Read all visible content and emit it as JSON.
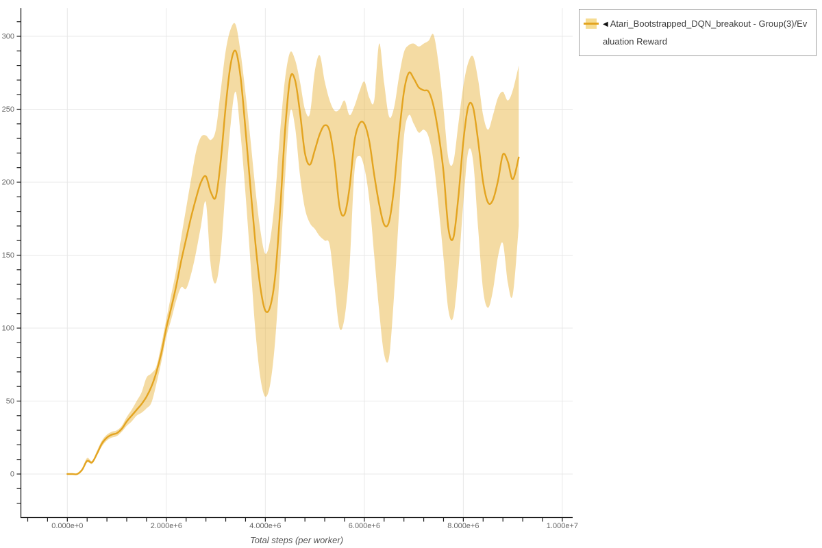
{
  "legend": {
    "collapse_icon": "◀",
    "label": "Atari_Bootstrapped_DQN_breakout - Group(3)/Evaluation Reward"
  },
  "chart_data": {
    "type": "line",
    "title": "",
    "xlabel": "Total steps (per worker)",
    "ylabel": "",
    "grid": true,
    "legend_position": "top-right-outside",
    "xlim": [
      -945000,
      10200000
    ],
    "ylim": [
      -30,
      320
    ],
    "x_ticks": [
      {
        "value": 0,
        "label": "0.000e+0"
      },
      {
        "value": 2000000,
        "label": "2.000e+6"
      },
      {
        "value": 4000000,
        "label": "4.000e+6"
      },
      {
        "value": 6000000,
        "label": "6.000e+6"
      },
      {
        "value": 8000000,
        "label": "8.000e+6"
      },
      {
        "value": 10000000,
        "label": "1.000e+7"
      }
    ],
    "x_minor_tick_step": 400000,
    "y_ticks": [
      {
        "value": 0,
        "label": "0"
      },
      {
        "value": 50,
        "label": "50"
      },
      {
        "value": 100,
        "label": "100"
      },
      {
        "value": 150,
        "label": "150"
      },
      {
        "value": 200,
        "label": "200"
      },
      {
        "value": 250,
        "label": "250"
      },
      {
        "value": 300,
        "label": "300"
      }
    ],
    "y_minor_tick_step": 10,
    "colors": {
      "line": "#e3a420",
      "band": "rgba(232,180,62,0.48)",
      "grid": "#e8e8e8",
      "spine": "#1a1a1a",
      "tick_label": "#666666"
    },
    "series": [
      {
        "name": "Atari_Bootstrapped_DQN_breakout - Group(3)/Evaluation Reward",
        "x": [
          0,
          100000,
          200000,
          300000,
          400000,
          500000,
          600000,
          700000,
          800000,
          900000,
          1000000,
          1100000,
          1200000,
          1300000,
          1400000,
          1500000,
          1600000,
          1700000,
          1800000,
          1900000,
          2000000,
          2100000,
          2200000,
          2300000,
          2400000,
          2500000,
          2600000,
          2700000,
          2800000,
          2900000,
          3000000,
          3100000,
          3200000,
          3300000,
          3400000,
          3500000,
          3600000,
          3700000,
          3800000,
          3900000,
          4000000,
          4100000,
          4200000,
          4300000,
          4400000,
          4500000,
          4600000,
          4700000,
          4800000,
          4900000,
          5000000,
          5100000,
          5200000,
          5300000,
          5400000,
          5500000,
          5600000,
          5700000,
          5800000,
          5900000,
          6000000,
          6100000,
          6200000,
          6300000,
          6400000,
          6500000,
          6600000,
          6700000,
          6800000,
          6900000,
          7000000,
          7100000,
          7200000,
          7300000,
          7400000,
          7500000,
          7600000,
          7700000,
          7800000,
          7900000,
          8000000,
          8100000,
          8200000,
          8300000,
          8400000,
          8500000,
          8600000,
          8700000,
          8800000,
          8900000,
          9000000,
          9120000
        ],
        "mean": [
          0,
          0,
          0,
          3,
          9,
          8,
          14,
          21,
          25,
          27,
          28,
          31,
          36,
          40,
          44,
          48,
          53,
          60,
          70,
          83,
          100,
          114,
          129,
          146,
          161,
          176,
          189,
          200,
          204,
          193,
          190,
          215,
          252,
          281,
          290,
          272,
          236,
          196,
          158,
          128,
          112,
          115,
          136,
          181,
          236,
          271,
          270,
          248,
          220,
          212,
          222,
          233,
          239,
          235,
          214,
          183,
          178,
          196,
          228,
          240,
          240,
          228,
          205,
          185,
          171,
          173,
          196,
          232,
          262,
          275,
          271,
          265,
          263,
          262,
          252,
          233,
          207,
          168,
          162,
          190,
          228,
          252,
          251,
          228,
          200,
          186,
          188,
          201,
          219,
          214,
          202,
          217
        ],
        "band_lower": [
          0,
          0,
          0,
          2,
          8,
          7,
          13,
          19,
          23,
          25,
          26,
          29,
          33,
          36,
          40,
          42,
          45,
          49,
          62,
          77,
          94,
          106,
          119,
          128,
          127,
          137,
          152,
          170,
          186,
          142,
          131,
          152,
          198,
          240,
          262,
          233,
          192,
          145,
          98,
          66,
          53,
          62,
          92,
          143,
          203,
          248,
          238,
          205,
          182,
          172,
          168,
          163,
          160,
          157,
          128,
          100,
          107,
          142,
          207,
          218,
          210,
          188,
          150,
          112,
          82,
          80,
          122,
          178,
          231,
          246,
          240,
          234,
          236,
          231,
          214,
          183,
          148,
          112,
          108,
          140,
          186,
          221,
          214,
          168,
          126,
          114,
          126,
          149,
          158,
          131,
          123,
          170
        ],
        "band_upper": [
          0,
          0,
          0,
          4,
          11,
          9,
          16,
          23,
          27,
          29,
          30,
          33,
          39,
          44,
          50,
          56,
          66,
          69,
          74,
          89,
          106,
          123,
          140,
          162,
          182,
          202,
          221,
          231,
          232,
          229,
          236,
          263,
          290,
          305,
          308,
          289,
          261,
          229,
          195,
          167,
          151,
          161,
          191,
          235,
          271,
          289,
          284,
          269,
          250,
          247,
          276,
          287,
          269,
          256,
          249,
          250,
          256,
          246,
          252,
          262,
          269,
          258,
          256,
          295,
          268,
          245,
          251,
          272,
          289,
          294,
          295,
          293,
          295,
          297,
          301,
          281,
          250,
          216,
          214,
          240,
          266,
          282,
          286,
          270,
          246,
          236,
          246,
          258,
          262,
          256,
          263,
          280
        ]
      }
    ]
  }
}
